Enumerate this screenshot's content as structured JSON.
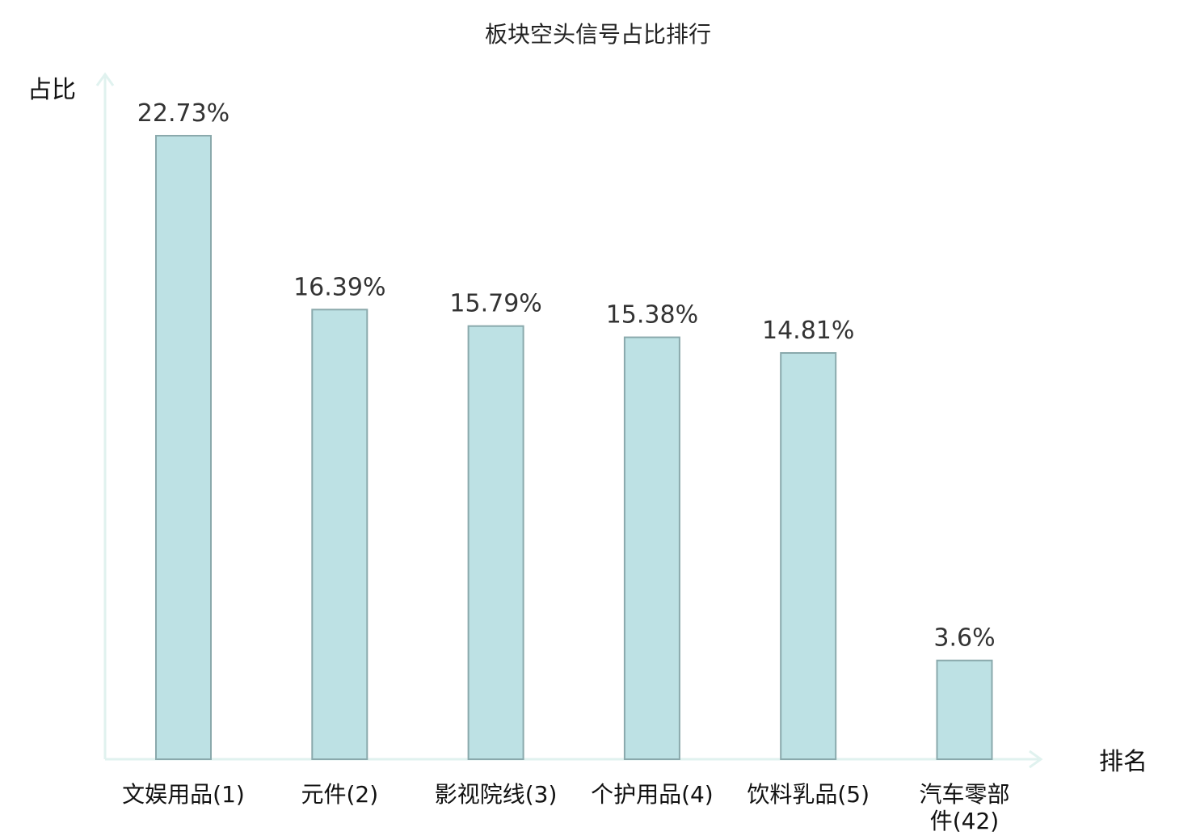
{
  "chart_data": {
    "type": "bar",
    "title": "板块空头信号占比排行",
    "ylabel": "占比",
    "xlabel": "排名",
    "categories": [
      "文娱用品(1)",
      "元件(2)",
      "影视院线(3)",
      "个护用品(4)",
      "饮料乳品(5)",
      "汽车零部件(42)"
    ],
    "category_lines": [
      [
        "文娱用品(1)"
      ],
      [
        "元件(2)"
      ],
      [
        "影视院线(3)"
      ],
      [
        "个护用品(4)"
      ],
      [
        "饮料乳品(5)"
      ],
      [
        "汽车零部",
        "件(42)"
      ]
    ],
    "values": [
      22.73,
      16.39,
      15.79,
      15.38,
      14.81,
      3.6
    ],
    "value_labels": [
      "22.73%",
      "16.39%",
      "15.79%",
      "15.38%",
      "14.81%",
      "3.6%"
    ],
    "highlight_index": 5,
    "ylim": [
      0,
      22.73
    ],
    "grid": false,
    "colors": {
      "bar_fill": "#bde1e4",
      "bar_stroke": "#8aa9ac",
      "axis": "#e0f2ef",
      "highlight_label": "#e0141e",
      "label": "#111111"
    }
  }
}
